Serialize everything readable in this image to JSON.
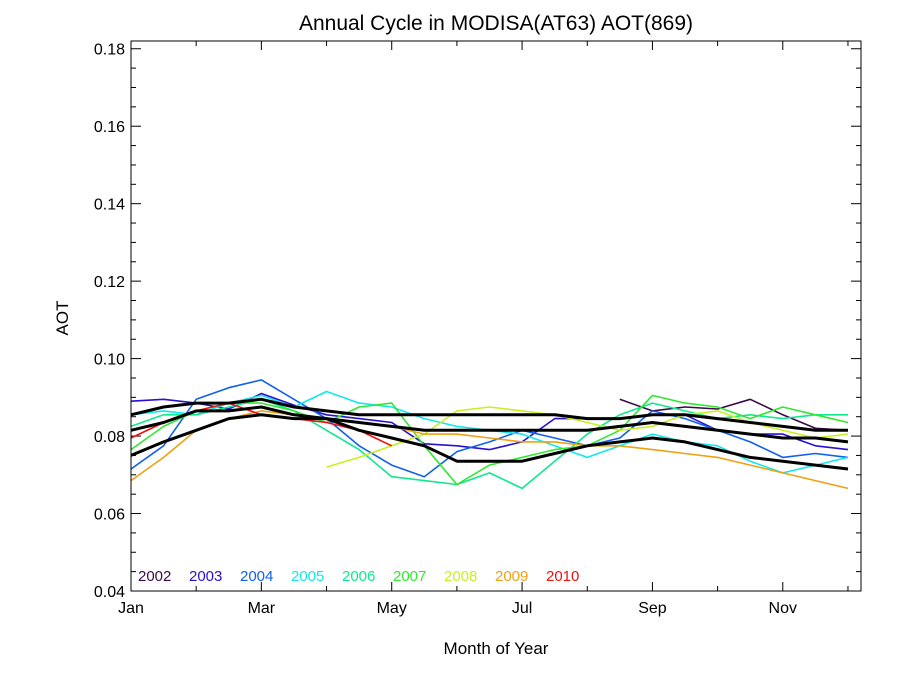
{
  "chart_data": {
    "type": "line",
    "title": "Annual Cycle in MODISA(AT63) AOT(869)",
    "xlabel": "Month of Year",
    "ylabel": "AOT",
    "xlim": [
      1,
      12.2
    ],
    "ylim": [
      0.04,
      0.182
    ],
    "x_ticks": [
      1,
      3,
      5,
      7,
      9,
      11
    ],
    "x_tick_labels": [
      "Jan",
      "Mar",
      "May",
      "Jul",
      "Sep",
      "Nov"
    ],
    "y_ticks": [
      0.04,
      0.06,
      0.08,
      0.1,
      0.12,
      0.14,
      0.16,
      0.18
    ],
    "y_tick_labels": [
      "0.04",
      "0.06",
      "0.08",
      "0.10",
      "0.12",
      "0.14",
      "0.16",
      "0.18"
    ],
    "legend_placement": "bottom-left",
    "series": [
      {
        "name": "2002",
        "color": "#3a0a4a",
        "x": [
          8.5,
          9,
          9.5,
          10,
          10.5,
          11,
          11.5,
          12
        ],
        "y": [
          0.0895,
          0.0865,
          0.0875,
          0.087,
          0.0895,
          0.0855,
          0.082,
          0.0815
        ]
      },
      {
        "name": "2003",
        "color": "#2a10d0",
        "x": [
          1,
          1.5,
          2,
          2.5,
          3,
          3.5,
          4,
          4.5,
          5,
          5.5,
          6,
          6.5,
          7,
          7.5,
          8,
          8.5,
          9,
          9.5,
          10,
          10.5,
          11,
          11.5,
          12
        ],
        "y": [
          0.089,
          0.0895,
          0.0885,
          0.087,
          0.091,
          0.088,
          0.0855,
          0.0845,
          0.0835,
          0.078,
          0.0775,
          0.0765,
          0.0785,
          0.0845,
          0.0845,
          0.0845,
          0.0855,
          0.0855,
          0.0815,
          0.0805,
          0.0805,
          0.0775,
          0.0765
        ]
      },
      {
        "name": "2004",
        "color": "#1060f0",
        "x": [
          1,
          1.5,
          2,
          2.5,
          3,
          3.5,
          4,
          4.5,
          5,
          5.5,
          6,
          6.5,
          7,
          7.5,
          8,
          8.5,
          9,
          9.5,
          10,
          10.5,
          11,
          11.5,
          12
        ],
        "y": [
          0.0715,
          0.0775,
          0.0895,
          0.0925,
          0.0945,
          0.0895,
          0.0845,
          0.0775,
          0.0725,
          0.0695,
          0.076,
          0.0785,
          0.0815,
          0.0795,
          0.0775,
          0.0795,
          0.0865,
          0.0845,
          0.0815,
          0.0785,
          0.0745,
          0.0755,
          0.0745
        ]
      },
      {
        "name": "2005",
        "color": "#10e8f0",
        "x": [
          1,
          1.5,
          2,
          2.5,
          3,
          3.5,
          4,
          4.5,
          5,
          5.5,
          6,
          6.5,
          7,
          7.5,
          8,
          8.5,
          9,
          9.5,
          10,
          10.5,
          11,
          11.5,
          12
        ],
        "y": [
          0.0855,
          0.0865,
          0.0855,
          0.0885,
          0.0905,
          0.0875,
          0.0915,
          0.0885,
          0.0875,
          0.0845,
          0.0825,
          0.0815,
          0.0805,
          0.0775,
          0.0745,
          0.0775,
          0.0805,
          0.0785,
          0.0775,
          0.0735,
          0.0705,
          0.0725,
          0.0745
        ]
      },
      {
        "name": "2006",
        "color": "#10e890",
        "x": [
          1,
          1.5,
          2,
          2.5,
          3,
          3.5,
          4,
          4.5,
          5,
          5.5,
          6,
          6.5,
          7,
          7.5,
          8,
          8.5,
          9,
          9.5,
          10,
          10.5,
          11,
          11.5,
          12
        ],
        "y": [
          0.0825,
          0.0855,
          0.0855,
          0.0875,
          0.0895,
          0.0865,
          0.0815,
          0.0765,
          0.0695,
          0.0685,
          0.0675,
          0.0705,
          0.0665,
          0.0735,
          0.0805,
          0.0855,
          0.0885,
          0.0865,
          0.0845,
          0.0855,
          0.0845,
          0.0855,
          0.0855
        ]
      },
      {
        "name": "2007",
        "color": "#30e830",
        "x": [
          1,
          1.5,
          2,
          2.5,
          3,
          3.5,
          4,
          4.5,
          5,
          5.5,
          6,
          6.5,
          7,
          7.5,
          8,
          8.5,
          9,
          9.5,
          10,
          10.5,
          11,
          11.5,
          12
        ],
        "y": [
          0.0765,
          0.0825,
          0.0865,
          0.0885,
          0.0885,
          0.0865,
          0.0835,
          0.0875,
          0.0885,
          0.0775,
          0.0675,
          0.0725,
          0.0745,
          0.0765,
          0.0775,
          0.0815,
          0.0905,
          0.0885,
          0.0875,
          0.0845,
          0.0875,
          0.0855,
          0.0835
        ]
      },
      {
        "name": "2008",
        "color": "#c8f020",
        "x": [
          4,
          4.5,
          5,
          5.5,
          6,
          6.5,
          7,
          7.5,
          8,
          8.5,
          9,
          9.5,
          10,
          10.5,
          11,
          11.5,
          12
        ],
        "y": [
          0.072,
          0.0745,
          0.0775,
          0.0805,
          0.0865,
          0.0875,
          0.0865,
          0.0855,
          0.0835,
          0.0815,
          0.0825,
          0.0855,
          0.0865,
          0.0835,
          0.0815,
          0.0795,
          0.0805
        ]
      },
      {
        "name": "2009",
        "color": "#f0a010",
        "x": [
          1,
          1.5,
          2,
          2.5,
          3,
          3.5,
          4,
          4.5,
          5,
          5.5,
          6,
          6.5,
          7,
          7.5,
          8,
          8.5,
          9,
          9.5,
          10,
          10.5,
          11,
          11.5,
          12
        ],
        "y": [
          0.0685,
          0.0745,
          0.0815,
          0.0845,
          0.0865,
          0.0855,
          0.0845,
          0.0835,
          0.0825,
          0.0805,
          0.0805,
          0.0795,
          0.0785,
          0.0785,
          0.0775,
          0.0775,
          0.0765,
          0.0755,
          0.0745,
          0.0725,
          0.0705,
          0.0685,
          0.0665
        ]
      },
      {
        "name": "2010",
        "color": "#f01010",
        "x": [
          1,
          1.5,
          2,
          2.5,
          3,
          3.5,
          4,
          4.5,
          5
        ],
        "y": [
          0.0795,
          0.0835,
          0.0865,
          0.0885,
          0.0855,
          0.0845,
          0.0835,
          0.0815,
          0.0775
        ]
      },
      {
        "name": "",
        "color": "#000000",
        "bold": true,
        "x": [
          1,
          1.5,
          2,
          2.5,
          3,
          3.5,
          4,
          4.5,
          5,
          5.5,
          6,
          6.5,
          7,
          7.5,
          8,
          8.5,
          9,
          9.5,
          10,
          10.5,
          11,
          11.5,
          12
        ],
        "y": [
          0.0855,
          0.0875,
          0.0885,
          0.0885,
          0.0895,
          0.0875,
          0.0865,
          0.0855,
          0.0855,
          0.0855,
          0.0855,
          0.0855,
          0.0855,
          0.0855,
          0.0845,
          0.0845,
          0.0855,
          0.0855,
          0.0845,
          0.0835,
          0.0825,
          0.0815,
          0.0815
        ]
      },
      {
        "name": "",
        "color": "#000000",
        "bold": true,
        "x": [
          1,
          1.5,
          2,
          2.5,
          3,
          3.5,
          4,
          4.5,
          5,
          5.5,
          6,
          6.5,
          7,
          7.5,
          8,
          8.5,
          9,
          9.5,
          10,
          10.5,
          11,
          11.5,
          12
        ],
        "y": [
          0.0815,
          0.0835,
          0.0865,
          0.0865,
          0.0875,
          0.0855,
          0.0845,
          0.0835,
          0.0825,
          0.0815,
          0.0815,
          0.0815,
          0.0815,
          0.0815,
          0.0815,
          0.0825,
          0.0835,
          0.0825,
          0.0815,
          0.0805,
          0.0795,
          0.0795,
          0.0785
        ]
      },
      {
        "name": "",
        "color": "#000000",
        "bold": true,
        "x": [
          1,
          1.5,
          2,
          2.5,
          3,
          3.5,
          4,
          4.5,
          5,
          5.5,
          6,
          6.5,
          7,
          7.5,
          8,
          8.5,
          9,
          9.5,
          10,
          10.5,
          11,
          11.5,
          12
        ],
        "y": [
          0.075,
          0.0785,
          0.0815,
          0.0845,
          0.0855,
          0.0845,
          0.0845,
          0.0815,
          0.0795,
          0.0775,
          0.0735,
          0.0735,
          0.0735,
          0.0755,
          0.0775,
          0.0785,
          0.0795,
          0.0785,
          0.0765,
          0.0745,
          0.0735,
          0.0725,
          0.0715
        ]
      }
    ]
  }
}
